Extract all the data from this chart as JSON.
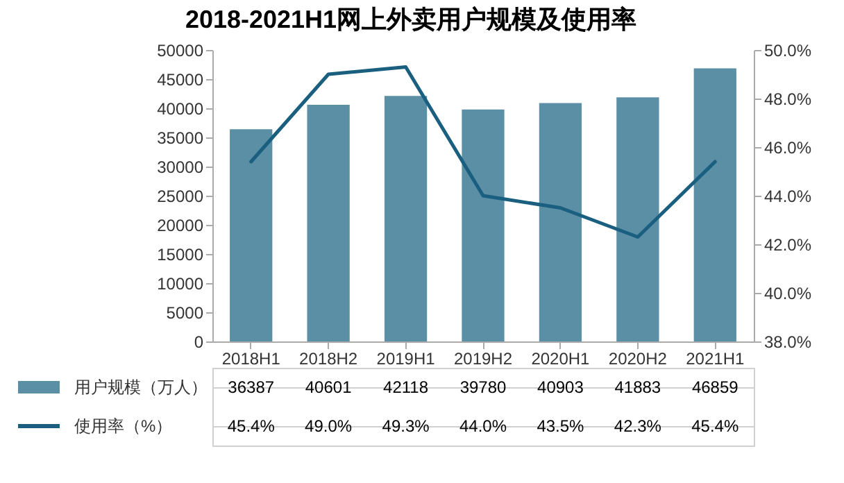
{
  "chart_data": {
    "type": "bar",
    "title": "2018-2021H1网上外卖用户规模及使用率",
    "categories": [
      "2018H1",
      "2018H2",
      "2019H1",
      "2019H2",
      "2020H1",
      "2020H2",
      "2021H1"
    ],
    "series": [
      {
        "name": "用户规模（万人）",
        "color": "#5b8fa6",
        "values": [
          36387,
          40601,
          42118,
          39780,
          40903,
          41883,
          46859
        ],
        "value_labels": [
          "36387",
          "40601",
          "42118",
          "39780",
          "40903",
          "41883",
          "46859"
        ]
      },
      {
        "name": "使用率（%）",
        "type": "line",
        "axis": "y2",
        "color": "#1a5f7f",
        "values": [
          45.4,
          49.0,
          49.3,
          44.0,
          43.5,
          42.3,
          45.4
        ],
        "value_labels": [
          "45.4%",
          "49.0%",
          "49.3%",
          "44.0%",
          "43.5%",
          "42.3%",
          "45.4%"
        ]
      }
    ],
    "ylim": [
      0,
      50000
    ],
    "yticks": [
      0,
      5000,
      10000,
      15000,
      20000,
      25000,
      30000,
      35000,
      40000,
      45000,
      50000
    ],
    "y2lim": [
      38,
      50
    ],
    "y2ticks": [
      {
        "value": 38,
        "label": "38.0%"
      },
      {
        "value": 40,
        "label": "40.0%"
      },
      {
        "value": 42,
        "label": "42.0%"
      },
      {
        "value": 44,
        "label": "44.0%"
      },
      {
        "value": 46,
        "label": "46.0%"
      },
      {
        "value": 48,
        "label": "48.0%"
      },
      {
        "value": 50,
        "label": "50.0%"
      }
    ],
    "grid": false,
    "legend": "bottom",
    "marker": "none",
    "line_style": "solid"
  }
}
